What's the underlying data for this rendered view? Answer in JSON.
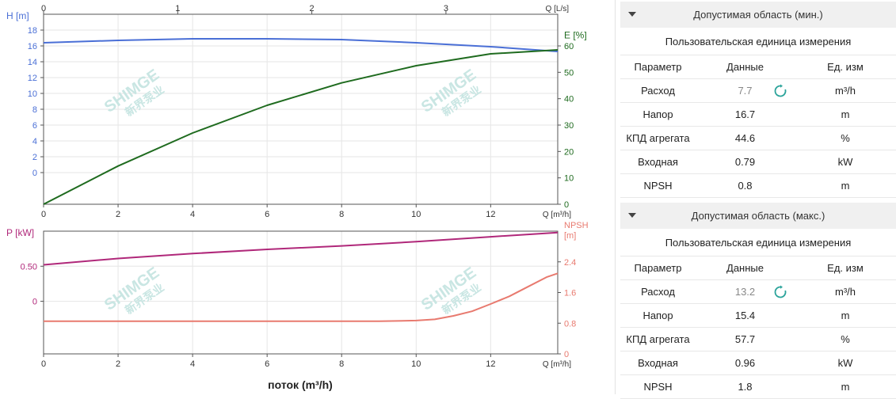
{
  "chart_data": [
    {
      "type": "line",
      "title": "",
      "xlabel": "Q [m³/h]",
      "x2label": "Q [L/s]",
      "ylabel": "H [m]",
      "y2label": "E [%]",
      "xlim": [
        0,
        13.8
      ],
      "ylim": [
        -4,
        20
      ],
      "y2lim": [
        0,
        72
      ],
      "x_ticks": [
        "0",
        "2",
        "4",
        "6",
        "8",
        "10",
        "12"
      ],
      "x2_ticks": [
        "0",
        "1",
        "2",
        "3"
      ],
      "y_ticks": [
        "0",
        "2",
        "4",
        "6",
        "8",
        "10",
        "12",
        "14",
        "16",
        "18"
      ],
      "y2_ticks": [
        "0",
        "10",
        "20",
        "30",
        "40",
        "50",
        "60"
      ],
      "grid": true,
      "series": [
        {
          "axis": "left",
          "color": "#4a6fd6",
          "x": [
            0,
            2,
            4,
            6,
            8,
            10,
            12,
            13.8
          ],
          "y": [
            16.4,
            16.7,
            16.9,
            16.9,
            16.8,
            16.4,
            15.9,
            15.3
          ]
        },
        {
          "axis": "right",
          "color": "#1f6b1f",
          "x": [
            0,
            2,
            4,
            6,
            8,
            10,
            12,
            13.8
          ],
          "y": [
            0,
            14.5,
            27,
            37.5,
            46,
            52.5,
            57,
            58.5
          ]
        }
      ]
    },
    {
      "type": "line",
      "title": "",
      "xlabel": "Q [m³/h]",
      "ylabel": "P [kW]",
      "y2label": "NPSH [m]",
      "xlim": [
        0,
        13.8
      ],
      "ylim": [
        -0.75,
        1.0
      ],
      "y2lim": [
        0,
        3.2
      ],
      "x_ticks": [
        "0",
        "2",
        "4",
        "6",
        "8",
        "10",
        "12"
      ],
      "y_ticks": [
        "0",
        "0.50"
      ],
      "y2_ticks": [
        "0",
        "0.8",
        "1.6",
        "2.4"
      ],
      "grid": true,
      "series": [
        {
          "axis": "left",
          "color": "#b0287a",
          "x": [
            0,
            2,
            4,
            6,
            8,
            10,
            12,
            13.8
          ],
          "y": [
            0.52,
            0.61,
            0.68,
            0.74,
            0.79,
            0.85,
            0.92,
            0.98
          ]
        },
        {
          "axis": "right",
          "color": "#e87a6f",
          "x": [
            0,
            2,
            4,
            6,
            8,
            9,
            10,
            10.5,
            11,
            11.5,
            12,
            12.5,
            13,
            13.5,
            13.8
          ],
          "y": [
            0.85,
            0.85,
            0.85,
            0.85,
            0.85,
            0.85,
            0.87,
            0.9,
            0.99,
            1.11,
            1.3,
            1.5,
            1.75,
            2.0,
            2.1
          ]
        }
      ]
    }
  ],
  "chart_xlabel_bottom": "поток (m³/h)",
  "watermark": {
    "brand": "SHIMGE",
    "cn": "新界泵业"
  },
  "panels": [
    {
      "title": "Допустимая область (мин.)",
      "unit_label": "Пользовательская единица измерения",
      "headers": [
        "Параметр",
        "Данные",
        "Ед. изм"
      ],
      "rows": [
        [
          "Расход",
          "7.7",
          "m³/h"
        ],
        [
          "Напор",
          "16.7",
          "m"
        ],
        [
          "КПД агрегата",
          "44.6",
          "%"
        ],
        [
          "Входная",
          "0.79",
          "kW"
        ],
        [
          "NPSH",
          "0.8",
          "m"
        ]
      ]
    },
    {
      "title": "Допустимая область (макс.)",
      "unit_label": "Пользовательская единица измерения",
      "headers": [
        "Параметр",
        "Данные",
        "Ед. изм"
      ],
      "rows": [
        [
          "Расход",
          "13.2",
          "m³/h"
        ],
        [
          "Напор",
          "15.4",
          "m"
        ],
        [
          "КПД агрегата",
          "57.7",
          "%"
        ],
        [
          "Входная",
          "0.96",
          "kW"
        ],
        [
          "NPSH",
          "1.8",
          "m"
        ]
      ]
    }
  ],
  "colors": {
    "head": "#4a6fd6",
    "efficiency": "#1f6b1f",
    "power": "#b0287a",
    "npsh": "#e87a6f",
    "refresh": "#2aa39a"
  },
  "icons": {
    "panel_toggle": "caret-down-icon",
    "refresh": "refresh-icon"
  }
}
